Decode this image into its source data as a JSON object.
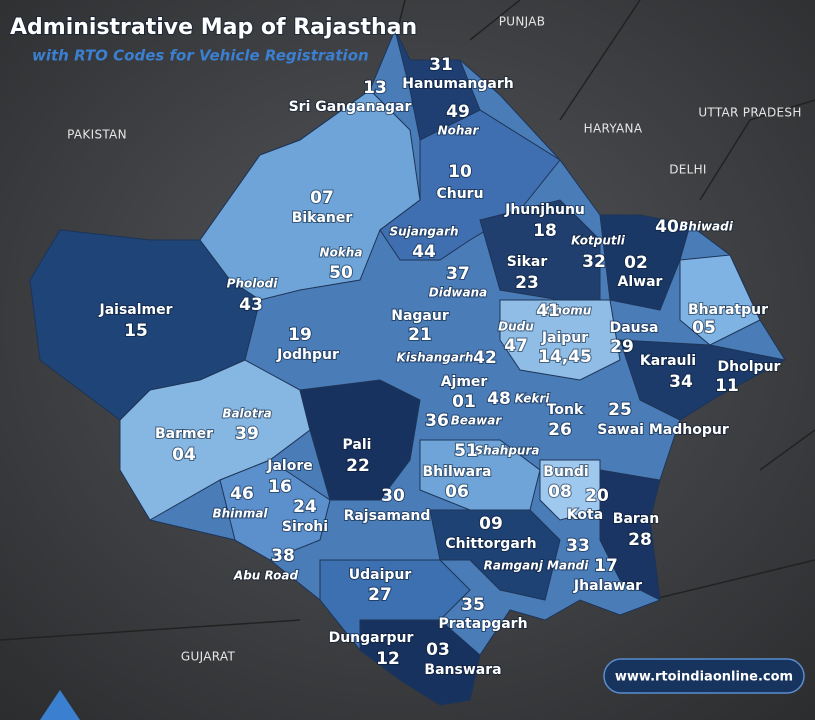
{
  "header": {
    "title": "Administrative Map of Rajasthan",
    "subtitle": "with RTO Codes for Vehicle Registration"
  },
  "neighbors": [
    "PUNJAB",
    "HARYANA",
    "UTTAR PRADESH",
    "DELHI",
    "PAKISTAN",
    "GUJARAT"
  ],
  "districts": [
    {
      "name": "Sri Ganganagar",
      "code": "13"
    },
    {
      "name": "Hanumangarh",
      "code": "31"
    },
    {
      "name": "Nohar",
      "code": "49"
    },
    {
      "name": "Churu",
      "code": "10"
    },
    {
      "name": "Bikaner",
      "code": "07"
    },
    {
      "name": "Jhunjhunu",
      "code": "18"
    },
    {
      "name": "Sujangarh",
      "code": "44"
    },
    {
      "name": "Nokha",
      "code": "50"
    },
    {
      "name": "Kotputli",
      "code": "32"
    },
    {
      "name": "Bhiwadi",
      "code": "40"
    },
    {
      "name": "Alwar",
      "code": "02"
    },
    {
      "name": "Sikar",
      "code": "23"
    },
    {
      "name": "Didwana",
      "code": "37"
    },
    {
      "name": "Pholodi",
      "code": "43"
    },
    {
      "name": "Jaisalmer",
      "code": "15"
    },
    {
      "name": "Bharatpur",
      "code": "05"
    },
    {
      "name": "Chomu",
      "code": "41"
    },
    {
      "name": "Nagaur",
      "code": "21"
    },
    {
      "name": "Jodhpur",
      "code": "19"
    },
    {
      "name": "Dausa",
      "code": "29"
    },
    {
      "name": "Jaipur",
      "code": "14,45"
    },
    {
      "name": "Dudu",
      "code": "47"
    },
    {
      "name": "Kishangarh",
      "code": "42"
    },
    {
      "name": "Karauli",
      "code": "34"
    },
    {
      "name": "Dholpur",
      "code": "11"
    },
    {
      "name": "Ajmer",
      "code": "01"
    },
    {
      "name": "Kekri",
      "code": "48"
    },
    {
      "name": "Balotra",
      "code": "39"
    },
    {
      "name": "Barmer",
      "code": "04"
    },
    {
      "name": "Tonk",
      "code": "26"
    },
    {
      "name": "Sawai Madhopur",
      "code": "25"
    },
    {
      "name": "Beawar",
      "code": "36"
    },
    {
      "name": "Shahpura",
      "code": "51"
    },
    {
      "name": "Pali",
      "code": "22"
    },
    {
      "name": "Jalore",
      "code": "16"
    },
    {
      "name": "Bhilwara",
      "code": "06"
    },
    {
      "name": "Bundi",
      "code": "08"
    },
    {
      "name": "Bhinmal",
      "code": "46"
    },
    {
      "name": "Sirohi",
      "code": "24"
    },
    {
      "name": "Rajsamand",
      "code": "30"
    },
    {
      "name": "Kota",
      "code": "20"
    },
    {
      "name": "Baran",
      "code": "28"
    },
    {
      "name": "Chittorgarh",
      "code": "09"
    },
    {
      "name": "Abu Road",
      "code": "38"
    },
    {
      "name": "Ramganj Mandi",
      "code": "33"
    },
    {
      "name": "Jhalawar",
      "code": "17"
    },
    {
      "name": "Udaipur",
      "code": "27"
    },
    {
      "name": "Pratapgarh",
      "code": "35"
    },
    {
      "name": "Dungarpur",
      "code": "12"
    },
    {
      "name": "Banswara",
      "code": "03"
    }
  ],
  "footer": {
    "url": "www.rtoindiaonline.com"
  }
}
